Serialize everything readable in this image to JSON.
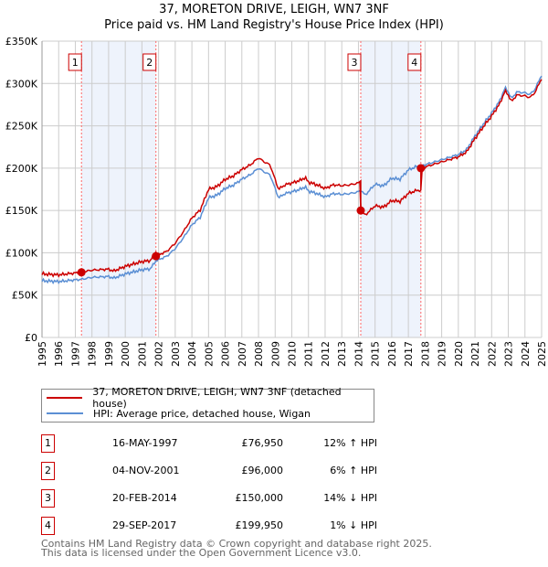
{
  "chart_data": {
    "type": "line",
    "title": "37, MORETON DRIVE, LEIGH, WN7 3NF",
    "subtitle": "Price paid vs. HM Land Registry's House Price Index (HPI)",
    "ylim": [
      0,
      350000
    ],
    "xlim": [
      1995,
      2025
    ],
    "yticks": [
      {
        "v": 0,
        "label": "£0"
      },
      {
        "v": 50000,
        "label": "£50K"
      },
      {
        "v": 100000,
        "label": "£100K"
      },
      {
        "v": 150000,
        "label": "£150K"
      },
      {
        "v": 200000,
        "label": "£200K"
      },
      {
        "v": 250000,
        "label": "£250K"
      },
      {
        "v": 300000,
        "label": "£300K"
      },
      {
        "v": 350000,
        "label": "£350K"
      }
    ],
    "xticks": [
      "1995",
      "1996",
      "1997",
      "1998",
      "1999",
      "2000",
      "2001",
      "2002",
      "2003",
      "2004",
      "2005",
      "2006",
      "2007",
      "2008",
      "2009",
      "2010",
      "2011",
      "2012",
      "2013",
      "2014",
      "2015",
      "2016",
      "2017",
      "2018",
      "2019",
      "2020",
      "2021",
      "2022",
      "2023",
      "2024",
      "2025"
    ],
    "grid": true,
    "colors": {
      "property": "#cc0000",
      "hpi": "#5b8fd4",
      "band": "#eef3fc",
      "marker_line": "#ff6666"
    },
    "hpi": {
      "x": [
        1995,
        1996,
        1997,
        1997.37,
        1998,
        1999,
        1999.3,
        2000,
        2001,
        2001.5,
        2001.84,
        2002,
        2002.5,
        2003,
        2003.5,
        2004,
        2004.5,
        2005,
        2005.5,
        2006,
        2006.5,
        2007,
        2007.5,
        2008,
        2008.3,
        2008.7,
        2009.2,
        2009.6,
        2010,
        2010.5,
        2010.8,
        2011,
        2011.5,
        2012,
        2012.5,
        2013,
        2013.5,
        2014,
        2014.14,
        2014.4,
        2015,
        2015.5,
        2016,
        2016.5,
        2017,
        2017.5,
        2017.75,
        2018,
        2018.5,
        2019,
        2019.5,
        2020,
        2020.5,
        2021,
        2021.5,
        2022,
        2022.5,
        2022.8,
        2023,
        2023.2,
        2023.5,
        2024,
        2024.3,
        2024.6,
        2025
      ],
      "y": [
        67000,
        66000,
        68000,
        68700,
        71000,
        72000,
        70000,
        75000,
        80000,
        81000,
        90500,
        92000,
        96000,
        105000,
        118000,
        133000,
        142000,
        165000,
        168000,
        176000,
        180000,
        187000,
        192000,
        200000,
        196000,
        192000,
        165000,
        170000,
        172000,
        175000,
        178000,
        173000,
        170000,
        166000,
        170000,
        169000,
        170000,
        172000,
        174500,
        168000,
        181000,
        179000,
        188000,
        187000,
        198000,
        202000,
        202500,
        204000,
        207000,
        210000,
        213000,
        216000,
        222000,
        238000,
        252000,
        265000,
        280000,
        295000,
        290000,
        282000,
        290000,
        289000,
        287000,
        293000,
        310000
      ]
    },
    "sales": [
      {
        "n": "1",
        "year": 1997.37,
        "date": "16-MAY-1997",
        "price": 76950,
        "price_label": "£76,950",
        "hpi_label": "12% ↑ HPI"
      },
      {
        "n": "2",
        "year": 2001.84,
        "date": "04-NOV-2001",
        "price": 96000,
        "price_label": "£96,000",
        "hpi_label": "6% ↑ HPI"
      },
      {
        "n": "3",
        "year": 2014.14,
        "date": "20-FEB-2014",
        "price": 150000,
        "price_label": "£150,000",
        "hpi_label": "14% ↓ HPI"
      },
      {
        "n": "4",
        "year": 2017.75,
        "date": "29-SEP-2017",
        "price": 199950,
        "price_label": "£199,950",
        "hpi_label": "1% ↓ HPI"
      }
    ],
    "legend": {
      "property": "37, MORETON DRIVE, LEIGH, WN7 3NF (detached house)",
      "hpi": "HPI: Average price, detached house, Wigan"
    }
  },
  "footer": {
    "line1": "Contains HM Land Registry data © Crown copyright and database right 2025.",
    "line2": "This data is licensed under the Open Government Licence v3.0."
  }
}
